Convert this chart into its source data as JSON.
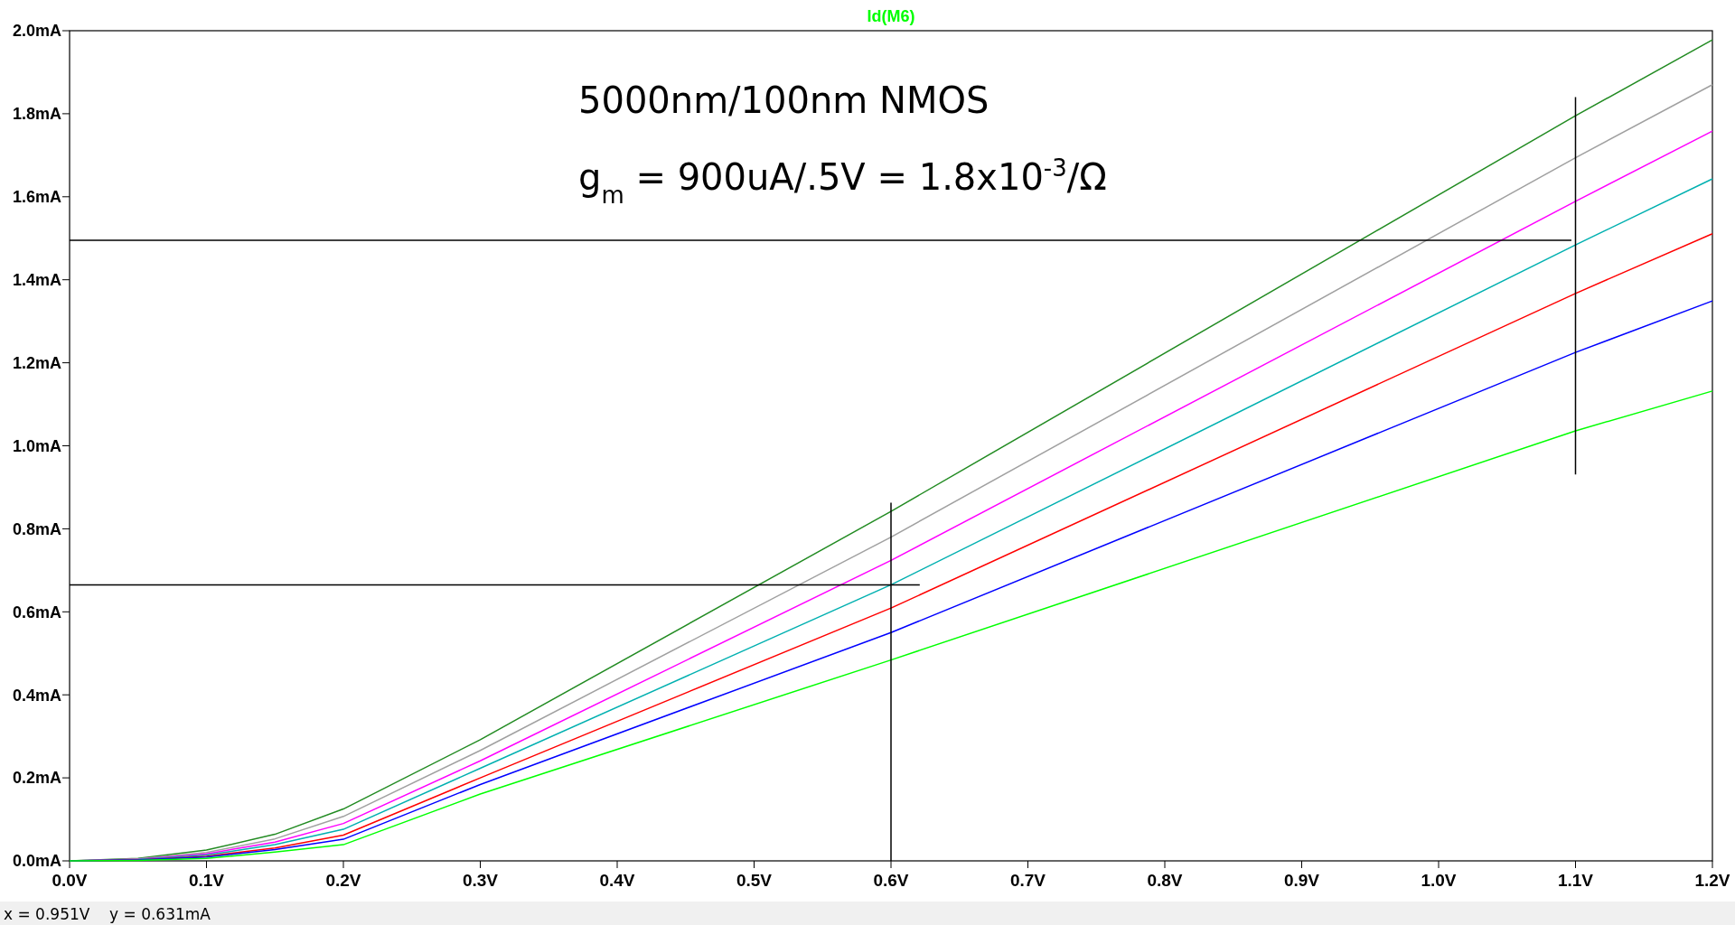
{
  "chart_data": {
    "type": "line",
    "title": "Id(M6)",
    "x": [
      0,
      0.05,
      0.1,
      0.15,
      0.2,
      0.3,
      0.6,
      1.1,
      1.2
    ],
    "series": [
      {
        "color": "#228b22",
        "values": [
          0,
          0.006,
          0.026,
          0.064,
          0.125,
          0.292,
          0.842,
          1.795,
          1.978
        ]
      },
      {
        "color": "#a0a0a0",
        "values": [
          0,
          0.005,
          0.02,
          0.053,
          0.107,
          0.266,
          0.78,
          1.694,
          1.87
        ]
      },
      {
        "color": "#ff00ff",
        "values": [
          0,
          0.004,
          0.017,
          0.045,
          0.09,
          0.241,
          0.724,
          1.589,
          1.758
        ]
      },
      {
        "color": "#00b0b0",
        "values": [
          0,
          0.003,
          0.014,
          0.039,
          0.076,
          0.223,
          0.665,
          1.484,
          1.643
        ]
      },
      {
        "color": "#ff0000",
        "values": [
          0,
          0.002,
          0.011,
          0.031,
          0.062,
          0.2,
          0.609,
          1.367,
          1.511
        ]
      },
      {
        "color": "#0000ff",
        "values": [
          0,
          0.002,
          0.009,
          0.027,
          0.052,
          0.184,
          0.55,
          1.225,
          1.349
        ]
      },
      {
        "color": "#00ff00",
        "values": [
          0,
          0.001,
          0.006,
          0.021,
          0.039,
          0.161,
          0.484,
          1.036,
          1.132
        ]
      },
      {
        "type": "line",
        "color": "#000000",
        "x": [
          0,
          0.621
        ],
        "values": [
          0.665,
          0.665
        ]
      },
      {
        "type": "line",
        "color": "#000000",
        "x": [
          0.6,
          0.6
        ],
        "values": [
          0,
          0.863
        ]
      },
      {
        "type": "line",
        "color": "#000000",
        "x": [
          0,
          1.097
        ],
        "values": [
          1.495,
          1.495
        ]
      },
      {
        "type": "line",
        "color": "#000000",
        "x": [
          1.1,
          1.1
        ],
        "values": [
          0.931,
          1.84
        ]
      }
    ],
    "xlim": [
      0,
      1.2
    ],
    "ylim": [
      0,
      2.0
    ],
    "xticks": [
      {
        "value": 0,
        "label": "0.0V"
      },
      {
        "value": 0.1,
        "label": "0.1V"
      },
      {
        "value": 0.2,
        "label": "0.2V"
      },
      {
        "value": 0.3,
        "label": "0.3V"
      },
      {
        "value": 0.4,
        "label": "0.4V"
      },
      {
        "value": 0.5,
        "label": "0.5V"
      },
      {
        "value": 0.6,
        "label": "0.6V"
      },
      {
        "value": 0.7,
        "label": "0.7V"
      },
      {
        "value": 0.8,
        "label": "0.8V"
      },
      {
        "value": 0.9,
        "label": "0.9V"
      },
      {
        "value": 1.0,
        "label": "1.0V"
      },
      {
        "value": 1.1,
        "label": "1.1V"
      },
      {
        "value": 1.2,
        "label": "1.2V"
      }
    ],
    "yticks": [
      {
        "value": 0,
        "label": "0.0mA"
      },
      {
        "value": 0.2,
        "label": "0.2mA"
      },
      {
        "value": 0.4,
        "label": "0.4mA"
      },
      {
        "value": 0.6,
        "label": "0.6mA"
      },
      {
        "value": 0.8,
        "label": "0.8mA"
      },
      {
        "value": 1.0,
        "label": "1.0mA"
      },
      {
        "value": 1.2,
        "label": "1.2mA"
      },
      {
        "value": 1.4,
        "label": "1.4mA"
      },
      {
        "value": 1.6,
        "label": "1.6mA"
      },
      {
        "value": 1.8,
        "label": "1.8mA"
      },
      {
        "value": 2.0,
        "label": "2.0mA"
      }
    ],
    "grid": false,
    "annotations": [
      "5000nm/100nm NMOS",
      "g$_{m}$ = 900uA/.5V = 1.8x10$^{-3}$/Ω",
      "x = 0.951V    y = 0.631mA"
    ]
  }
}
